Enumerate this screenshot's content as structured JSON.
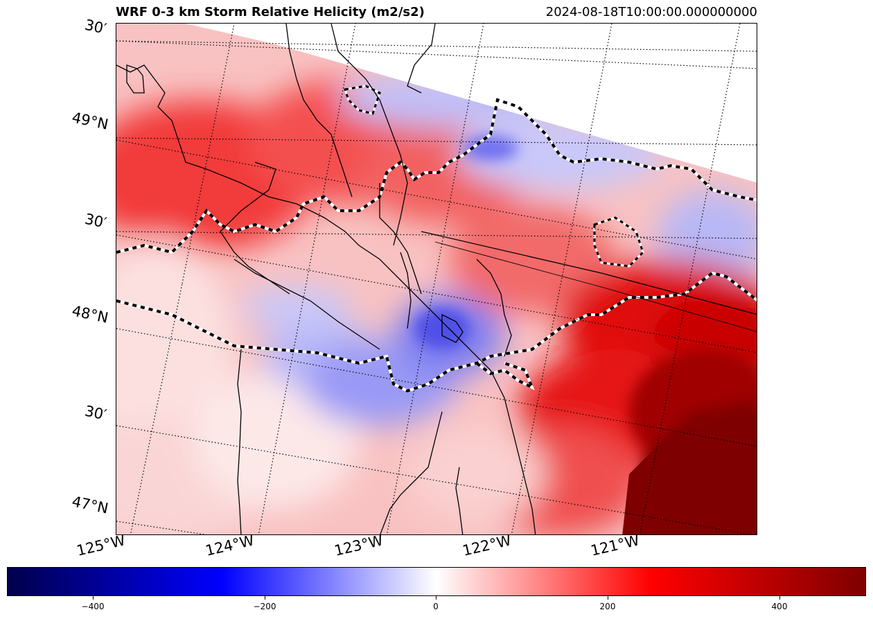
{
  "title": "WRF 0-3 km Storm Relative Helicity (m2/s2)",
  "valid_time": "2024-08-18T10:00:00.000000000",
  "lat_labels": [
    "30′",
    "49°N",
    "30′",
    "48°N",
    "30′",
    "47°N"
  ],
  "lon_labels": [
    "125°W",
    "124°W",
    "123°W",
    "122°W",
    "121°W"
  ],
  "colorbar": {
    "ticks": [
      "−400",
      "−200",
      "0",
      "200",
      "400"
    ],
    "colormap": "seismic",
    "range": [
      -500,
      500
    ],
    "colors": {
      "min": "#00004c",
      "neg": "#0000ff",
      "zero": "#ffffff",
      "pos": "#ff0000",
      "max": "#7f0000"
    }
  }
}
